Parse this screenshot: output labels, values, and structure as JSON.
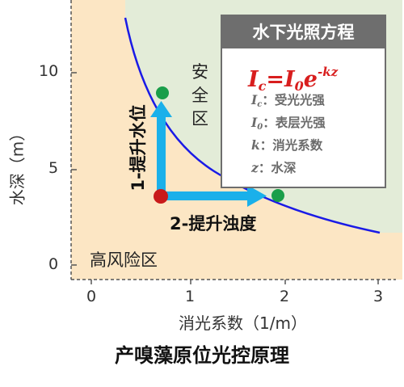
{
  "caption": "产嗅藻原位光控原理",
  "x_axis": {
    "label": "消光系数（1/m）",
    "ticks": [
      "0",
      "1",
      "2",
      "3"
    ]
  },
  "y_axis": {
    "label": "水深（m）",
    "ticks": [
      "0",
      "5",
      "10"
    ]
  },
  "zones": {
    "safe": "安全区",
    "risk": "高风险区"
  },
  "actions": {
    "raise_level": "1-提升水位",
    "raise_turbidity": "2-提升浊度"
  },
  "legend": {
    "title": "水下光照方程",
    "formula": {
      "lhs": "I",
      "lhs_sub": "c",
      "eq": "=",
      "rhs": "I",
      "rhs_sub": "0",
      "base": "e",
      "exp": "-kz"
    },
    "items": [
      {
        "sym": "I",
        "sub": "c",
        "text": "：受光光强"
      },
      {
        "sym": "I",
        "sub": "0",
        "text": "：表层光强"
      },
      {
        "sym": "k",
        "sub": "",
        "text": "：消光系数"
      },
      {
        "sym": "z",
        "sub": "",
        "text": "：水深"
      }
    ]
  },
  "colors": {
    "risk_zone": "#fce6c4",
    "safe_zone": "#e3ecd8",
    "curve": "#1a1ae6",
    "arrow": "#1ab0ea",
    "start_point": "#c91a1a",
    "target_point": "#1a9e4a",
    "legend_header": "#6e6e6e",
    "formula": "#d81e1e"
  }
}
